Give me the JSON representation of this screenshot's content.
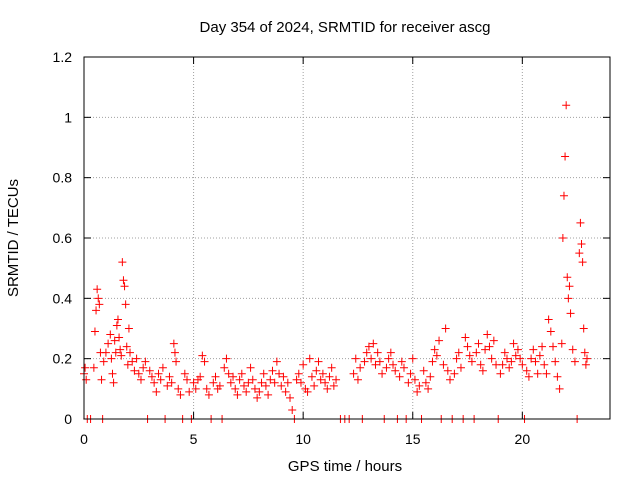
{
  "chart_data": {
    "type": "scatter",
    "title": "Day 354 of 2024, SRMTID for receiver ascg",
    "xlabel": "GPS time / hours",
    "ylabel": "SRMTID / TECUs",
    "xlim": [
      0,
      24
    ],
    "ylim": [
      0,
      1.2
    ],
    "grid": true,
    "marker": "+",
    "color": "#ff0000",
    "x_ticks": [
      0,
      5,
      10,
      15,
      20
    ],
    "y_ticks": [
      0,
      0.2,
      0.4,
      0.6,
      0.8,
      1,
      1.2
    ],
    "x_tick_labels": [
      "0",
      "5",
      "10",
      "15",
      "20"
    ],
    "y_tick_labels": [
      "0",
      "0.2",
      "0.4",
      "0.6",
      "0.8",
      "1",
      "1.2"
    ],
    "series": [
      {
        "name": "ascg",
        "points": [
          [
            0.0,
            0.15
          ],
          [
            0.05,
            0.17
          ],
          [
            0.1,
            0.13
          ],
          [
            0.15,
            0.0
          ],
          [
            0.3,
            0.0
          ],
          [
            0.45,
            0.17
          ],
          [
            0.5,
            0.29
          ],
          [
            0.55,
            0.36
          ],
          [
            0.6,
            0.43
          ],
          [
            0.65,
            0.4
          ],
          [
            0.7,
            0.38
          ],
          [
            0.75,
            0.22
          ],
          [
            0.8,
            0.13
          ],
          [
            0.85,
            0.0
          ],
          [
            0.9,
            0.19
          ],
          [
            1.0,
            0.22
          ],
          [
            1.1,
            0.25
          ],
          [
            1.2,
            0.28
          ],
          [
            1.25,
            0.2
          ],
          [
            1.3,
            0.15
          ],
          [
            1.35,
            0.12
          ],
          [
            1.4,
            0.26
          ],
          [
            1.45,
            0.22
          ],
          [
            1.5,
            0.31
          ],
          [
            1.55,
            0.33
          ],
          [
            1.6,
            0.27
          ],
          [
            1.65,
            0.23
          ],
          [
            1.7,
            0.21
          ],
          [
            1.75,
            0.52
          ],
          [
            1.8,
            0.46
          ],
          [
            1.85,
            0.44
          ],
          [
            1.9,
            0.38
          ],
          [
            1.95,
            0.24
          ],
          [
            2.0,
            0.18
          ],
          [
            2.05,
            0.3
          ],
          [
            2.1,
            0.22
          ],
          [
            2.2,
            0.19
          ],
          [
            2.3,
            0.16
          ],
          [
            2.4,
            0.2
          ],
          [
            2.5,
            0.15
          ],
          [
            2.6,
            0.13
          ],
          [
            2.7,
            0.17
          ],
          [
            2.8,
            0.19
          ],
          [
            2.9,
            0.0
          ],
          [
            3.0,
            0.16
          ],
          [
            3.1,
            0.14
          ],
          [
            3.2,
            0.12
          ],
          [
            3.3,
            0.09
          ],
          [
            3.4,
            0.15
          ],
          [
            3.5,
            0.13
          ],
          [
            3.6,
            0.17
          ],
          [
            3.7,
            0.0
          ],
          [
            3.8,
            0.11
          ],
          [
            3.9,
            0.14
          ],
          [
            4.0,
            0.12
          ],
          [
            4.1,
            0.25
          ],
          [
            4.15,
            0.22
          ],
          [
            4.2,
            0.19
          ],
          [
            4.3,
            0.1
          ],
          [
            4.4,
            0.08
          ],
          [
            4.5,
            0.0
          ],
          [
            4.6,
            0.15
          ],
          [
            4.7,
            0.13
          ],
          [
            4.8,
            0.09
          ],
          [
            4.9,
            0.0
          ],
          [
            5.0,
            0.12
          ],
          [
            5.1,
            0.1
          ],
          [
            5.2,
            0.13
          ],
          [
            5.3,
            0.14
          ],
          [
            5.4,
            0.21
          ],
          [
            5.5,
            0.19
          ],
          [
            5.6,
            0.1
          ],
          [
            5.7,
            0.08
          ],
          [
            5.8,
            0.0
          ],
          [
            5.9,
            0.12
          ],
          [
            6.0,
            0.14
          ],
          [
            6.1,
            0.1
          ],
          [
            6.2,
            0.11
          ],
          [
            6.3,
            0.0
          ],
          [
            6.4,
            0.17
          ],
          [
            6.5,
            0.2
          ],
          [
            6.6,
            0.15
          ],
          [
            6.7,
            0.12
          ],
          [
            6.8,
            0.14
          ],
          [
            6.9,
            0.1
          ],
          [
            7.0,
            0.08
          ],
          [
            7.1,
            0.13
          ],
          [
            7.2,
            0.15
          ],
          [
            7.3,
            0.11
          ],
          [
            7.4,
            0.09
          ],
          [
            7.5,
            0.12
          ],
          [
            7.6,
            0.17
          ],
          [
            7.7,
            0.13
          ],
          [
            7.8,
            0.1
          ],
          [
            7.9,
            0.07
          ],
          [
            8.0,
            0.09
          ],
          [
            8.1,
            0.12
          ],
          [
            8.2,
            0.15
          ],
          [
            8.3,
            0.11
          ],
          [
            8.4,
            0.08
          ],
          [
            8.5,
            0.13
          ],
          [
            8.6,
            0.16
          ],
          [
            8.7,
            0.12
          ],
          [
            8.8,
            0.19
          ],
          [
            8.9,
            0.15
          ],
          [
            9.0,
            0.11
          ],
          [
            9.1,
            0.14
          ],
          [
            9.2,
            0.09
          ],
          [
            9.3,
            0.12
          ],
          [
            9.4,
            0.07
          ],
          [
            9.5,
            0.03
          ],
          [
            9.6,
            0.0
          ],
          [
            9.7,
            0.13
          ],
          [
            9.8,
            0.15
          ],
          [
            9.9,
            0.12
          ],
          [
            10.0,
            0.18
          ],
          [
            10.1,
            0.1
          ],
          [
            10.2,
            0.09
          ],
          [
            10.3,
            0.2
          ],
          [
            10.4,
            0.14
          ],
          [
            10.5,
            0.11
          ],
          [
            10.6,
            0.16
          ],
          [
            10.7,
            0.19
          ],
          [
            10.8,
            0.13
          ],
          [
            10.9,
            0.15
          ],
          [
            11.0,
            0.12
          ],
          [
            11.1,
            0.1
          ],
          [
            11.2,
            0.14
          ],
          [
            11.3,
            0.17
          ],
          [
            11.4,
            0.11
          ],
          [
            11.5,
            0.13
          ],
          [
            11.7,
            0.0
          ],
          [
            11.9,
            0.0
          ],
          [
            12.1,
            0.0
          ],
          [
            12.3,
            0.15
          ],
          [
            12.4,
            0.2
          ],
          [
            12.5,
            0.13
          ],
          [
            12.6,
            0.17
          ],
          [
            12.7,
            0.0
          ],
          [
            12.8,
            0.19
          ],
          [
            12.9,
            0.22
          ],
          [
            13.0,
            0.24
          ],
          [
            13.1,
            0.2
          ],
          [
            13.2,
            0.25
          ],
          [
            13.3,
            0.18
          ],
          [
            13.4,
            0.22
          ],
          [
            13.5,
            0.19
          ],
          [
            13.6,
            0.15
          ],
          [
            13.7,
            0.0
          ],
          [
            13.8,
            0.17
          ],
          [
            13.9,
            0.2
          ],
          [
            14.0,
            0.22
          ],
          [
            14.1,
            0.18
          ],
          [
            14.2,
            0.16
          ],
          [
            14.3,
            0.0
          ],
          [
            14.4,
            0.14
          ],
          [
            14.5,
            0.19
          ],
          [
            14.6,
            0.17
          ],
          [
            14.7,
            0.0
          ],
          [
            14.8,
            0.12
          ],
          [
            14.9,
            0.15
          ],
          [
            15.0,
            0.2
          ],
          [
            15.1,
            0.13
          ],
          [
            15.2,
            0.09
          ],
          [
            15.3,
            0.11
          ],
          [
            15.4,
            0.0
          ],
          [
            15.5,
            0.16
          ],
          [
            15.6,
            0.12
          ],
          [
            15.7,
            0.1
          ],
          [
            15.8,
            0.14
          ],
          [
            15.9,
            0.19
          ],
          [
            16.0,
            0.23
          ],
          [
            16.1,
            0.21
          ],
          [
            16.2,
            0.26
          ],
          [
            16.3,
            0.0
          ],
          [
            16.4,
            0.18
          ],
          [
            16.5,
            0.3
          ],
          [
            16.6,
            0.16
          ],
          [
            16.7,
            0.13
          ],
          [
            16.8,
            0.0
          ],
          [
            16.9,
            0.15
          ],
          [
            17.0,
            0.2
          ],
          [
            17.1,
            0.22
          ],
          [
            17.2,
            0.17
          ],
          [
            17.3,
            0.0
          ],
          [
            17.4,
            0.27
          ],
          [
            17.5,
            0.24
          ],
          [
            17.6,
            0.21
          ],
          [
            17.7,
            0.19
          ],
          [
            17.8,
            0.0
          ],
          [
            17.9,
            0.22
          ],
          [
            18.0,
            0.25
          ],
          [
            18.1,
            0.18
          ],
          [
            18.2,
            0.16
          ],
          [
            18.3,
            0.23
          ],
          [
            18.4,
            0.28
          ],
          [
            18.5,
            0.24
          ],
          [
            18.6,
            0.2
          ],
          [
            18.7,
            0.26
          ],
          [
            18.8,
            0.18
          ],
          [
            18.9,
            0.0
          ],
          [
            19.0,
            0.15
          ],
          [
            19.1,
            0.18
          ],
          [
            19.2,
            0.22
          ],
          [
            19.3,
            0.2
          ],
          [
            19.4,
            0.17
          ],
          [
            19.5,
            0.19
          ],
          [
            19.6,
            0.25
          ],
          [
            19.7,
            0.21
          ],
          [
            19.8,
            0.23
          ],
          [
            19.9,
            0.2
          ],
          [
            20.0,
            0.18
          ],
          [
            20.1,
            0.0
          ],
          [
            20.2,
            0.16
          ],
          [
            20.3,
            0.14
          ],
          [
            20.4,
            0.2
          ],
          [
            20.5,
            0.23
          ],
          [
            20.6,
            0.19
          ],
          [
            20.7,
            0.15
          ],
          [
            20.8,
            0.21
          ],
          [
            20.9,
            0.24
          ],
          [
            21.0,
            0.18
          ],
          [
            21.1,
            0.15
          ],
          [
            21.2,
            0.33
          ],
          [
            21.3,
            0.29
          ],
          [
            21.4,
            0.24
          ],
          [
            21.5,
            0.19
          ],
          [
            21.6,
            0.14
          ],
          [
            21.7,
            0.1
          ],
          [
            21.8,
            0.25
          ],
          [
            21.85,
            0.6
          ],
          [
            21.9,
            0.74
          ],
          [
            21.95,
            0.87
          ],
          [
            22.0,
            1.04
          ],
          [
            22.05,
            0.47
          ],
          [
            22.1,
            0.4
          ],
          [
            22.15,
            0.44
          ],
          [
            22.2,
            0.35
          ],
          [
            22.3,
            0.23
          ],
          [
            22.4,
            0.19
          ],
          [
            22.5,
            0.0
          ],
          [
            22.6,
            0.55
          ],
          [
            22.65,
            0.65
          ],
          [
            22.7,
            0.58
          ],
          [
            22.75,
            0.52
          ],
          [
            22.8,
            0.3
          ],
          [
            22.85,
            0.22
          ],
          [
            22.9,
            0.18
          ],
          [
            22.95,
            0.2
          ]
        ]
      }
    ]
  }
}
